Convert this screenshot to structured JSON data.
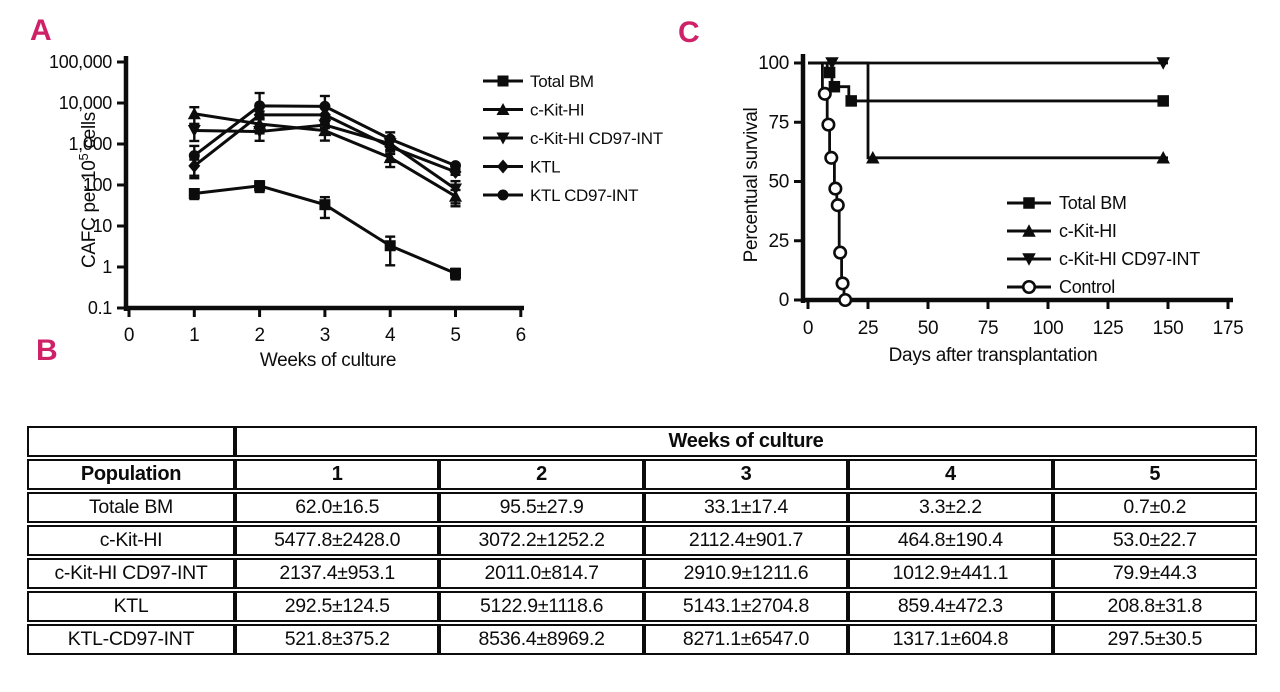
{
  "panels": {
    "a": "A",
    "b": "B",
    "c": "C"
  },
  "colors": {
    "panel_label": "#cf2168",
    "ink": "#0c0c0c",
    "background": "#ffffff"
  },
  "chart_data": [
    {
      "id": "cafc-frequency",
      "type": "line",
      "panel": "A",
      "title": "",
      "xlabel": "Weeks of culture",
      "ylabel": "CAFC per 10⁵ cells",
      "yscale": "log",
      "ylim": [
        0.1,
        100000
      ],
      "xlim": [
        0,
        6
      ],
      "xticks": [
        0,
        1,
        2,
        3,
        4,
        5,
        6
      ],
      "yticks": [
        0.1,
        1,
        10,
        100,
        1000,
        10000,
        100000
      ],
      "ytick_labels": [
        "0.1",
        "1",
        "10",
        "100",
        "1,000",
        "10,000",
        "100,000"
      ],
      "legend_position": "right",
      "grid": false,
      "x": [
        1,
        2,
        3,
        4,
        5
      ],
      "series": [
        {
          "name": "Total BM",
          "marker": "square",
          "values": [
            62.0,
            95.5,
            33.1,
            3.3,
            0.7
          ],
          "errors": [
            16.5,
            27.9,
            17.4,
            2.2,
            0.2
          ]
        },
        {
          "name": "c-Kit-HI",
          "marker": "triangle-up",
          "values": [
            5477.8,
            3072.2,
            2112.4,
            464.8,
            53.0
          ],
          "errors": [
            2428.0,
            1252.2,
            901.7,
            190.4,
            22.7
          ]
        },
        {
          "name": "c-Kit-HI CD97-INT",
          "marker": "triangle-down",
          "values": [
            2137.4,
            2011.0,
            2910.9,
            1012.9,
            79.9
          ],
          "errors": [
            953.1,
            814.7,
            1211.6,
            441.1,
            44.3
          ]
        },
        {
          "name": "KTL",
          "marker": "diamond",
          "values": [
            292.5,
            5122.9,
            5143.1,
            859.4,
            208.8
          ],
          "errors": [
            124.5,
            1118.6,
            2704.8,
            472.3,
            31.8
          ]
        },
        {
          "name": "KTL CD97-INT",
          "marker": "circle",
          "values": [
            521.8,
            8536.4,
            8271.1,
            1317.1,
            297.5
          ],
          "errors": [
            375.2,
            8969.2,
            6547.0,
            604.8,
            30.5
          ]
        }
      ]
    },
    {
      "id": "survival",
      "type": "step",
      "panel": "C",
      "title": "",
      "xlabel": "Days after transplantation",
      "ylabel": "Percentual survival",
      "xlim": [
        0,
        175
      ],
      "ylim": [
        0,
        100
      ],
      "xticks": [
        0,
        25,
        50,
        75,
        100,
        125,
        150,
        175
      ],
      "yticks": [
        0,
        25,
        50,
        75,
        100
      ],
      "legend_position": "inside-right",
      "grid": false,
      "series": [
        {
          "name": "Total BM",
          "marker": "square",
          "open": false,
          "steps": [
            [
              0,
              100
            ],
            [
              8,
              100
            ],
            [
              8,
              96
            ],
            [
              10,
              96
            ],
            [
              10,
              90
            ],
            [
              17,
              90
            ],
            [
              17,
              84
            ],
            [
              150,
              84
            ]
          ],
          "markers": [
            [
              9,
              96
            ],
            [
              11,
              90
            ],
            [
              18,
              84
            ],
            [
              148,
              84
            ]
          ]
        },
        {
          "name": "c-Kit-HI",
          "marker": "triangle-up",
          "open": false,
          "steps": [
            [
              0,
              100
            ],
            [
              25,
              100
            ],
            [
              25,
              60
            ],
            [
              150,
              60
            ]
          ],
          "markers": [
            [
              27,
              60
            ],
            [
              148,
              60
            ]
          ]
        },
        {
          "name": "c-Kit-HI CD97-INT",
          "marker": "triangle-down",
          "open": false,
          "steps": [
            [
              0,
              100
            ],
            [
              150,
              100
            ]
          ],
          "markers": [
            [
              10,
              100
            ],
            [
              148,
              100
            ]
          ]
        },
        {
          "name": "Control",
          "marker": "circle",
          "open": true,
          "steps": [
            [
              0,
              100
            ],
            [
              6,
              100
            ],
            [
              6,
              87
            ],
            [
              8,
              87
            ],
            [
              8,
              74
            ],
            [
              9,
              74
            ],
            [
              9,
              60
            ],
            [
              11,
              60
            ],
            [
              11,
              47
            ],
            [
              12,
              47
            ],
            [
              12,
              40
            ],
            [
              13,
              40
            ],
            [
              13,
              20
            ],
            [
              14,
              20
            ],
            [
              14,
              7
            ],
            [
              15,
              7
            ],
            [
              15,
              0
            ],
            [
              16,
              0
            ]
          ],
          "markers": [
            [
              7,
              87
            ],
            [
              8.5,
              74
            ],
            [
              9.7,
              60
            ],
            [
              11.4,
              47
            ],
            [
              12.4,
              40
            ],
            [
              13.4,
              20
            ],
            [
              14.4,
              7
            ],
            [
              15.5,
              0
            ]
          ]
        }
      ]
    }
  ],
  "table": {
    "group_header": "Weeks of culture",
    "col_header": "Population",
    "week_cols": [
      "1",
      "2",
      "3",
      "4",
      "5"
    ],
    "rows": [
      {
        "population": "Totale BM",
        "values": [
          "62.0±16.5",
          "95.5±27.9",
          "33.1±17.4",
          "3.3±2.2",
          "0.7±0.2"
        ]
      },
      {
        "population": "c-Kit-HI",
        "values": [
          "5477.8±2428.0",
          "3072.2±1252.2",
          "2112.4±901.7",
          "464.8±190.4",
          "53.0±22.7"
        ]
      },
      {
        "population": "c-Kit-HI CD97-INT",
        "values": [
          "2137.4±953.1",
          "2011.0±814.7",
          "2910.9±1211.6",
          "1012.9±441.1",
          "79.9±44.3"
        ]
      },
      {
        "population": "KTL",
        "values": [
          "292.5±124.5",
          "5122.9±1118.6",
          "5143.1±2704.8",
          "859.4±472.3",
          "208.8±31.8"
        ]
      },
      {
        "population": "KTL-CD97-INT",
        "values": [
          "521.8±375.2",
          "8536.4±8969.2",
          "8271.1±6547.0",
          "1317.1±604.8",
          "297.5±30.5"
        ]
      }
    ]
  }
}
